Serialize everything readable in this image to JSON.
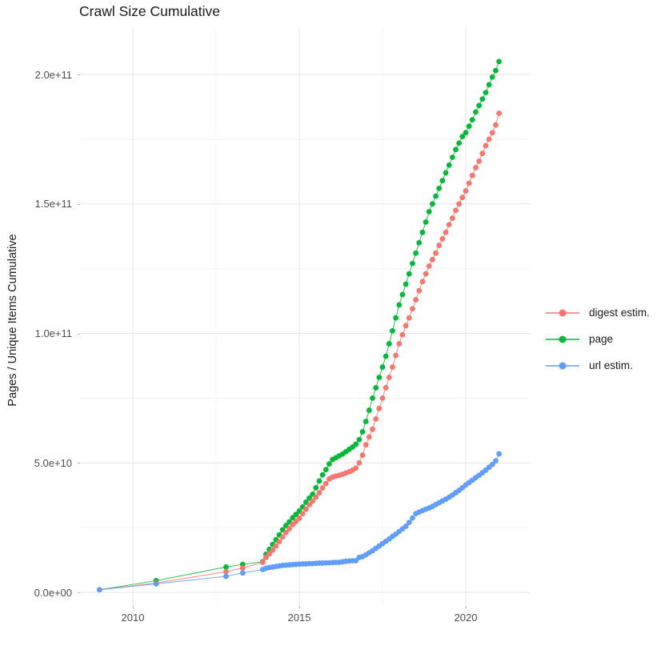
{
  "title": "Crawl Size Cumulative",
  "y_axis": {
    "label": "Pages / Unique Items Cumulative",
    "ticks": [
      "0.0e+00",
      "5.0e+10",
      "1.0e+11",
      "1.5e+11",
      "2.0e+11"
    ],
    "tick_values_billions": [
      0,
      50,
      100,
      150,
      200
    ],
    "minor_values_billions": [
      25,
      75,
      125,
      175
    ]
  },
  "x_axis": {
    "label": "",
    "ticks": [
      "2010",
      "2015",
      "2020"
    ],
    "tick_values": [
      2010,
      2015,
      2020
    ],
    "minor_values": [
      2012.5,
      2017.5
    ]
  },
  "legend": {
    "items": [
      {
        "label": "digest estim.",
        "color": "#F8766D"
      },
      {
        "label": "page",
        "color": "#00BA38"
      },
      {
        "label": "url estim.",
        "color": "#619CFF"
      }
    ]
  },
  "chart_data": {
    "type": "scatter",
    "title": "Crawl Size Cumulative",
    "xlabel": "",
    "ylabel": "Pages / Unique Items Cumulative",
    "xlim": [
      2008.4,
      2021.9
    ],
    "ylim_billions": [
      0,
      218
    ],
    "grid": true,
    "legend_position": "right",
    "unit_multiplier": 1000000000.0,
    "note": "values are in billions (multiply by 1e9); points estimated from pixels",
    "x": [
      2009.0,
      2010.7,
      2012.8,
      2013.3,
      2013.9,
      2014.0,
      2014.1,
      2014.2,
      2014.3,
      2014.4,
      2014.5,
      2014.6,
      2014.7,
      2014.8,
      2014.9,
      2015.0,
      2015.1,
      2015.2,
      2015.3,
      2015.4,
      2015.5,
      2015.6,
      2015.7,
      2015.8,
      2015.9,
      2016.0,
      2016.1,
      2016.2,
      2016.3,
      2016.4,
      2016.5,
      2016.6,
      2016.7,
      2016.8,
      2016.9,
      2017.0,
      2017.1,
      2017.2,
      2017.3,
      2017.4,
      2017.5,
      2017.6,
      2017.7,
      2017.8,
      2017.9,
      2018.0,
      2018.1,
      2018.2,
      2018.3,
      2018.4,
      2018.5,
      2018.6,
      2018.7,
      2018.8,
      2018.9,
      2019.0,
      2019.1,
      2019.2,
      2019.3,
      2019.4,
      2019.5,
      2019.6,
      2019.7,
      2019.8,
      2019.9,
      2020.0,
      2020.1,
      2020.2,
      2020.3,
      2020.4,
      2020.5,
      2020.6,
      2020.7,
      2020.8,
      2020.9,
      2021.0
    ],
    "series": [
      {
        "name": "page",
        "color": "#00BA38",
        "values": [
          1.0,
          4.5,
          9.8,
          10.8,
          11.8,
          14.7,
          16.6,
          18.5,
          20.3,
          22.2,
          24.2,
          25.8,
          27.2,
          28.8,
          30.1,
          31.4,
          33.0,
          34.8,
          36.4,
          37.9,
          40.4,
          43.0,
          45.4,
          47.4,
          49.6,
          51.3,
          52.0,
          52.7,
          53.4,
          54.3,
          55.2,
          56.1,
          57.2,
          59.0,
          62.0,
          66.0,
          70.3,
          75.0,
          79.0,
          83.0,
          87.0,
          91.2,
          96.0,
          101.0,
          106.0,
          111.0,
          115.0,
          119.0,
          123.0,
          127.0,
          131.0,
          135.0,
          139.0,
          143.0,
          147.0,
          150.0,
          153.0,
          156.0,
          159.0,
          162.0,
          165.0,
          168.0,
          171.0,
          173.5,
          176.0,
          177.5,
          180.0,
          182.5,
          185.5,
          188.0,
          190.5,
          193.0,
          196.0,
          199.0,
          201.5,
          205.0
        ]
      },
      {
        "name": "digest estim.",
        "color": "#F8766D",
        "values": [
          1.0,
          3.6,
          8.0,
          9.4,
          11.6,
          13.5,
          14.9,
          16.3,
          17.9,
          19.6,
          21.4,
          23.1,
          24.6,
          26.2,
          27.4,
          28.6,
          30.4,
          32.1,
          33.8,
          35.2,
          36.8,
          38.5,
          40.3,
          42.0,
          43.8,
          44.5,
          44.9,
          45.2,
          45.6,
          46.1,
          46.6,
          47.2,
          48.0,
          50.0,
          53.0,
          57.0,
          60.0,
          63.0,
          67.0,
          71.0,
          75.0,
          79.0,
          83.0,
          87.0,
          91.5,
          96.0,
          99.5,
          103.0,
          106.0,
          109.5,
          113.0,
          116.5,
          120.0,
          123.0,
          126.0,
          128.5,
          131.0,
          134.0,
          136.5,
          139.0,
          142.0,
          144.5,
          147.5,
          150.0,
          152.5,
          155.0,
          158.0,
          161.0,
          164.0,
          166.5,
          169.5,
          172.5,
          175.0,
          177.5,
          180.5,
          185.0
        ]
      },
      {
        "name": "url estim.",
        "color": "#619CFF",
        "values": [
          1.0,
          3.3,
          6.2,
          7.5,
          8.8,
          9.3,
          9.6,
          9.8,
          10.0,
          10.2,
          10.4,
          10.5,
          10.6,
          10.7,
          10.8,
          10.9,
          11.0,
          11.0,
          11.1,
          11.1,
          11.2,
          11.3,
          11.3,
          11.4,
          11.4,
          11.5,
          11.6,
          11.6,
          11.8,
          12.0,
          12.1,
          12.2,
          12.2,
          13.5,
          13.8,
          14.5,
          15.3,
          16.1,
          17.0,
          17.9,
          18.8,
          19.7,
          20.6,
          21.6,
          22.5,
          23.5,
          24.5,
          25.5,
          27.0,
          28.7,
          30.4,
          31.0,
          31.6,
          32.1,
          32.6,
          33.2,
          33.9,
          34.6,
          35.3,
          36.0,
          36.7,
          37.6,
          38.5,
          39.4,
          40.4,
          41.5,
          42.4,
          43.3,
          44.3,
          45.2,
          46.2,
          47.2,
          48.3,
          49.4,
          50.8,
          53.5
        ]
      }
    ]
  }
}
